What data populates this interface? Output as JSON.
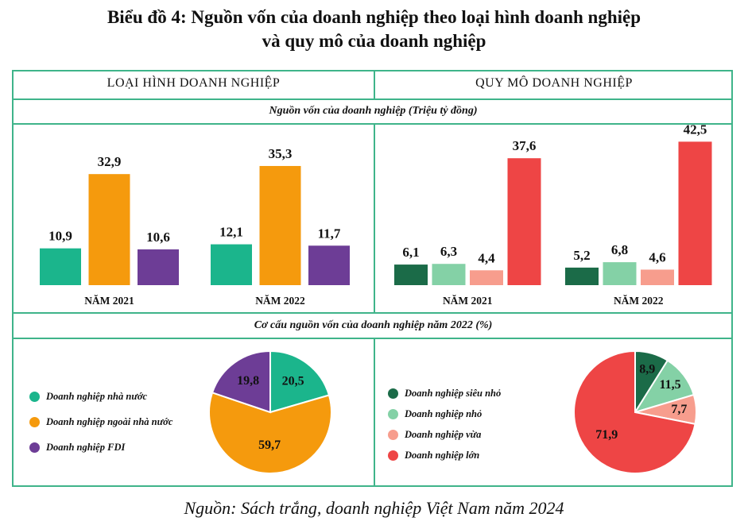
{
  "title_line1": "Biểu đồ 4: Nguồn vốn của doanh nghiệp theo loại hình doanh nghiệp",
  "title_line2": "và quy mô của doanh nghiệp",
  "panel_left_header": "LOẠI HÌNH DOANH NGHIỆP",
  "panel_right_header": "QUY MÔ DOANH NGHIỆP",
  "bars_subtitle": "Nguồn vốn của doanh nghiệp (Triệu tỷ đồng)",
  "pies_subtitle": "Cơ cấu nguồn vốn của doanh nghiệp năm 2022 (%)",
  "source": "Nguồn: Sách trắng, doanh nghiệp Việt Nam năm 2024",
  "chart_data": [
    {
      "type": "bar",
      "categories": [
        "NĂM 2021",
        "NĂM 2022"
      ],
      "series": [
        {
          "name": "Doanh nghiệp nhà nước",
          "color": "#1bb58c",
          "values": [
            10.9,
            12.1
          ],
          "labels": [
            "10,9",
            "12,1"
          ]
        },
        {
          "name": "Doanh nghiệp ngoài nhà nước",
          "color": "#f59a0d",
          "values": [
            32.9,
            35.3
          ],
          "labels": [
            "32,9",
            "35,3"
          ]
        },
        {
          "name": "Doanh nghiệp FDI",
          "color": "#6d3d96",
          "values": [
            10.6,
            11.7
          ],
          "labels": [
            "10,6",
            "11,7"
          ]
        }
      ]
    },
    {
      "type": "bar",
      "categories": [
        "NĂM 2021",
        "NĂM 2022"
      ],
      "series": [
        {
          "name": "Doanh nghiệp siêu nhỏ",
          "color": "#1b6b48",
          "values": [
            6.1,
            5.2
          ],
          "labels": [
            "6,1",
            "5,2"
          ]
        },
        {
          "name": "Doanh nghiệp nhỏ",
          "color": "#84d1a6",
          "values": [
            6.3,
            6.8
          ],
          "labels": [
            "6,3",
            "6,8"
          ]
        },
        {
          "name": "Doanh nghiệp vừa",
          "color": "#f79d8d",
          "values": [
            4.4,
            4.6
          ],
          "labels": [
            "4,4",
            "4,6"
          ]
        },
        {
          "name": "Doanh nghiệp lớn",
          "color": "#ee4545",
          "values": [
            37.6,
            42.5
          ],
          "labels": [
            "37,6",
            "42,5"
          ]
        }
      ]
    },
    {
      "type": "pie",
      "slices": [
        {
          "name": "Doanh nghiệp nhà nước",
          "value": 20.5,
          "label": "20,5",
          "color": "#1bb58c"
        },
        {
          "name": "Doanh nghiệp ngoài nhà nước",
          "value": 59.7,
          "label": "59,7",
          "color": "#f59a0d"
        },
        {
          "name": "Doanh nghiệp FDI",
          "value": 19.8,
          "label": "19,8",
          "color": "#6d3d96"
        }
      ]
    },
    {
      "type": "pie",
      "slices": [
        {
          "name": "Doanh nghiệp siêu nhỏ",
          "value": 8.9,
          "label": "8,9",
          "color": "#1b6b48"
        },
        {
          "name": "Doanh nghiệp nhỏ",
          "value": 11.5,
          "label": "11,5",
          "color": "#84d1a6"
        },
        {
          "name": "Doanh nghiệp vừa",
          "value": 7.7,
          "label": "7,7",
          "color": "#f79d8d"
        },
        {
          "name": "Doanh nghiệp lớn",
          "value": 71.9,
          "label": "71,9",
          "color": "#ee4545"
        }
      ]
    }
  ]
}
